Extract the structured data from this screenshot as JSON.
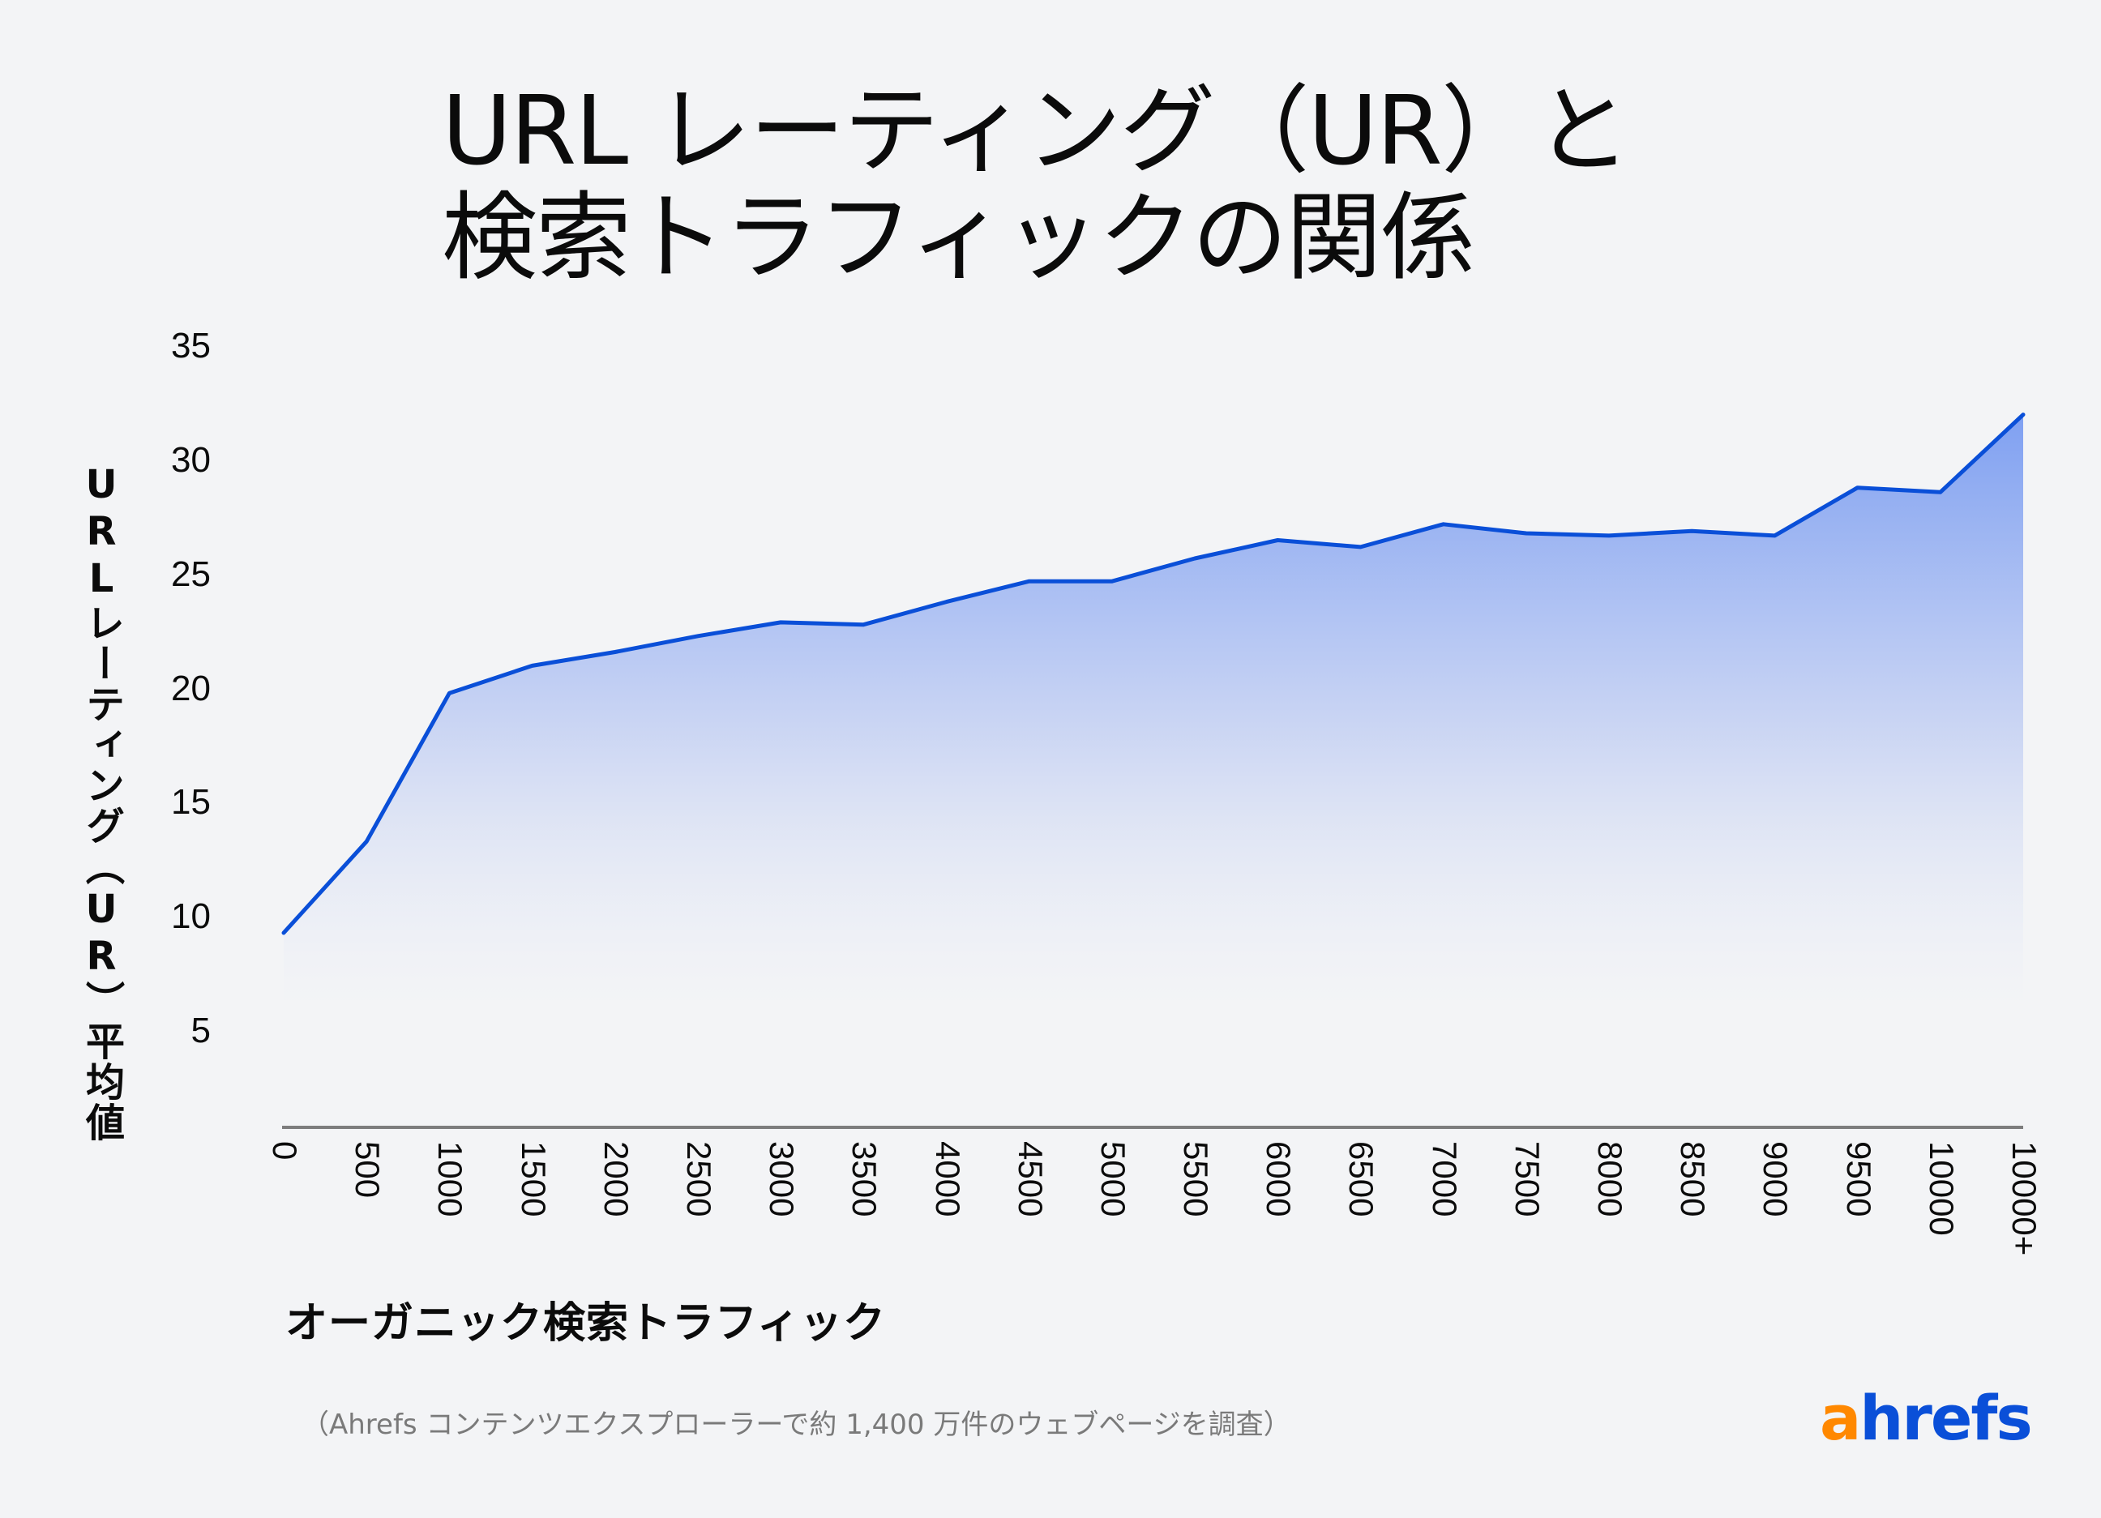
{
  "title": {
    "line1": "URL レーティング（UR）と",
    "line2": "検索トラフィックの関係"
  },
  "axes": {
    "ylabel": "URLレーティング（UR）平均値",
    "xlabel": "オーガニック検索トラフィック"
  },
  "footnote": "（Ahrefs コンテンツエクスプローラーで約 1,400 万件のウェブページを調査）",
  "logo": {
    "a": "a",
    "rest": "hrefs"
  },
  "colors": {
    "background": "#f3f4f6",
    "line": "#0a4fd8",
    "area_top": "#7fa0f2",
    "axis": "#7d7d7d",
    "logo_orange": "#ff8800",
    "logo_blue": "#0a4fd8"
  },
  "chart_data": {
    "type": "area",
    "title": "URL レーティング（UR）と検索トラフィックの関係",
    "xlabel": "オーガニック検索トラフィック",
    "ylabel": "URLレーティング（UR）平均値",
    "categories": [
      "0",
      "500",
      "1000",
      "1500",
      "2000",
      "2500",
      "3000",
      "3500",
      "4000",
      "4500",
      "5000",
      "5500",
      "6000",
      "6500",
      "7000",
      "7500",
      "8000",
      "8500",
      "9000",
      "9500",
      "10000",
      "10000+"
    ],
    "series": [
      {
        "name": "UR 平均値",
        "values": [
          9.3,
          13.3,
          19.8,
          21.0,
          21.6,
          22.3,
          22.9,
          22.8,
          23.8,
          24.7,
          24.7,
          25.7,
          26.5,
          26.2,
          27.2,
          26.8,
          26.7,
          26.9,
          26.7,
          28.8,
          28.6,
          32.0
        ]
      }
    ],
    "yticks": [
      5,
      10,
      15,
      20,
      25,
      30,
      35
    ],
    "ylim": [
      0,
      35
    ],
    "grid": false,
    "legend": "none"
  }
}
